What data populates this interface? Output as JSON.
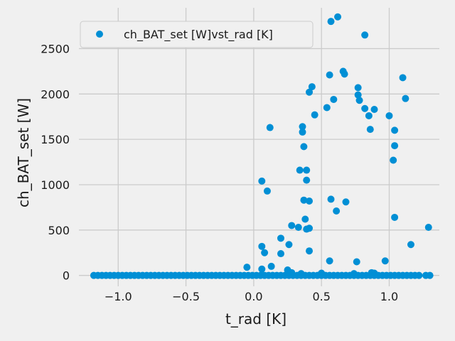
{
  "chart_data": {
    "type": "scatter",
    "xlabel": "t_rad [K]",
    "ylabel": "ch_BAT_set [W]",
    "xlim": [
      -1.29,
      1.37
    ],
    "ylim": [
      -120,
      2950
    ],
    "xticks": [
      -1.0,
      -0.5,
      0.0,
      0.5,
      1.0
    ],
    "xtick_labels": [
      "−1.0",
      "−0.5",
      "0.0",
      "0.5",
      "1.0"
    ],
    "yticks": [
      0,
      500,
      1000,
      1500,
      2000,
      2500
    ],
    "ytick_labels": [
      "0",
      "500",
      "1000",
      "1500",
      "2000",
      "2500"
    ],
    "grid": true,
    "legend_position": "top-left",
    "series": [
      {
        "name": "ch_BAT_set [W]vst_rad [K]",
        "color": "#008fd5",
        "points": [
          [
            0.57,
            2800
          ],
          [
            0.62,
            2850
          ],
          [
            0.82,
            2650
          ],
          [
            0.56,
            2210
          ],
          [
            0.66,
            2250
          ],
          [
            0.67,
            2220
          ],
          [
            1.1,
            2180
          ],
          [
            0.43,
            2080
          ],
          [
            0.41,
            2020
          ],
          [
            0.77,
            2070
          ],
          [
            0.59,
            1940
          ],
          [
            0.77,
            1990
          ],
          [
            0.78,
            1930
          ],
          [
            0.82,
            1840
          ],
          [
            0.89,
            1830
          ],
          [
            0.54,
            1850
          ],
          [
            0.45,
            1770
          ],
          [
            0.85,
            1760
          ],
          [
            1.0,
            1760
          ],
          [
            0.86,
            1610
          ],
          [
            1.12,
            1950
          ],
          [
            0.12,
            1630
          ],
          [
            0.36,
            1640
          ],
          [
            0.36,
            1580
          ],
          [
            1.04,
            1600
          ],
          [
            0.37,
            1420
          ],
          [
            1.04,
            1430
          ],
          [
            1.03,
            1270
          ],
          [
            0.34,
            1160
          ],
          [
            0.39,
            1160
          ],
          [
            0.06,
            1040
          ],
          [
            0.39,
            1050
          ],
          [
            0.1,
            930
          ],
          [
            0.37,
            830
          ],
          [
            0.41,
            820
          ],
          [
            0.57,
            840
          ],
          [
            0.68,
            810
          ],
          [
            0.61,
            710
          ],
          [
            0.38,
            620
          ],
          [
            1.04,
            640
          ],
          [
            0.28,
            550
          ],
          [
            0.33,
            530
          ],
          [
            0.39,
            510
          ],
          [
            0.41,
            520
          ],
          [
            1.29,
            530
          ],
          [
            0.2,
            410
          ],
          [
            0.26,
            340
          ],
          [
            1.16,
            340
          ],
          [
            0.06,
            320
          ],
          [
            0.08,
            250
          ],
          [
            0.2,
            240
          ],
          [
            0.41,
            270
          ],
          [
            0.56,
            160
          ],
          [
            0.76,
            150
          ],
          [
            0.97,
            160
          ],
          [
            0.13,
            100
          ],
          [
            -0.05,
            90
          ],
          [
            0.06,
            70
          ],
          [
            0.25,
            60
          ],
          [
            0.28,
            30
          ],
          [
            0.35,
            20
          ],
          [
            0.5,
            25
          ],
          [
            0.74,
            20
          ],
          [
            0.87,
            30
          ],
          [
            0.89,
            25
          ],
          [
            -1.18,
            0
          ],
          [
            -1.15,
            0
          ],
          [
            -1.12,
            0
          ],
          [
            -1.09,
            0
          ],
          [
            -1.06,
            0
          ],
          [
            -1.03,
            0
          ],
          [
            -1.0,
            0
          ],
          [
            -0.97,
            0
          ],
          [
            -0.94,
            0
          ],
          [
            -0.91,
            0
          ],
          [
            -0.88,
            0
          ],
          [
            -0.85,
            0
          ],
          [
            -0.82,
            0
          ],
          [
            -0.79,
            0
          ],
          [
            -0.76,
            0
          ],
          [
            -0.73,
            0
          ],
          [
            -0.7,
            0
          ],
          [
            -0.67,
            0
          ],
          [
            -0.64,
            0
          ],
          [
            -0.61,
            0
          ],
          [
            -0.58,
            0
          ],
          [
            -0.55,
            0
          ],
          [
            -0.52,
            0
          ],
          [
            -0.49,
            0
          ],
          [
            -0.46,
            0
          ],
          [
            -0.43,
            0
          ],
          [
            -0.4,
            0
          ],
          [
            -0.37,
            0
          ],
          [
            -0.34,
            0
          ],
          [
            -0.31,
            0
          ],
          [
            -0.28,
            0
          ],
          [
            -0.25,
            0
          ],
          [
            -0.22,
            0
          ],
          [
            -0.19,
            0
          ],
          [
            -0.16,
            0
          ],
          [
            -0.13,
            0
          ],
          [
            -0.1,
            0
          ],
          [
            -0.07,
            0
          ],
          [
            -0.04,
            0
          ],
          [
            -0.01,
            0
          ],
          [
            0.02,
            0
          ],
          [
            0.05,
            0
          ],
          [
            0.08,
            0
          ],
          [
            0.11,
            0
          ],
          [
            0.14,
            0
          ],
          [
            0.17,
            0
          ],
          [
            0.2,
            0
          ],
          [
            0.23,
            0
          ],
          [
            0.26,
            0
          ],
          [
            0.29,
            0
          ],
          [
            0.32,
            0
          ],
          [
            0.35,
            0
          ],
          [
            0.38,
            0
          ],
          [
            0.41,
            0
          ],
          [
            0.44,
            0
          ],
          [
            0.47,
            0
          ],
          [
            0.5,
            0
          ],
          [
            0.53,
            0
          ],
          [
            0.56,
            0
          ],
          [
            0.59,
            0
          ],
          [
            0.62,
            0
          ],
          [
            0.65,
            0
          ],
          [
            0.68,
            0
          ],
          [
            0.71,
            0
          ],
          [
            0.74,
            0
          ],
          [
            0.77,
            0
          ],
          [
            0.8,
            0
          ],
          [
            0.83,
            0
          ],
          [
            0.86,
            0
          ],
          [
            0.89,
            0
          ],
          [
            0.92,
            0
          ],
          [
            0.95,
            0
          ],
          [
            0.98,
            0
          ],
          [
            1.01,
            0
          ],
          [
            1.04,
            0
          ],
          [
            1.07,
            0
          ],
          [
            1.1,
            0
          ],
          [
            1.13,
            0
          ],
          [
            1.16,
            0
          ],
          [
            1.19,
            0
          ],
          [
            1.22,
            0
          ],
          [
            1.27,
            0
          ],
          [
            1.3,
            0
          ]
        ]
      }
    ]
  }
}
